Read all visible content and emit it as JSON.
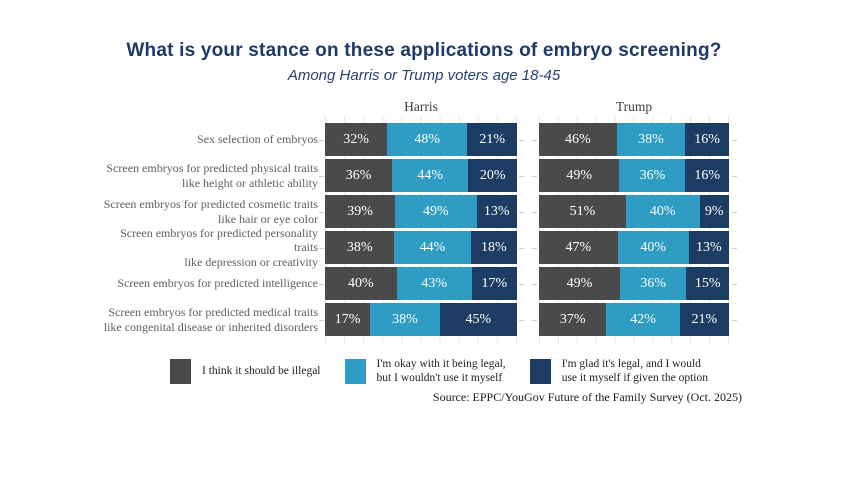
{
  "title": "What is your stance on these applications of embryo screening?",
  "subtitle": "Among Harris or Trump voters age 18-45",
  "source": "Source: EPPC/YouGov Future of the Family Survey (Oct. 2025)",
  "colors": {
    "illegal": "#4a4a4a",
    "legal_not_use": "#2e9cc3",
    "legal_would_use": "#1d3c63",
    "title_navy": "#1e3a6a",
    "row_label_gray": "#5f5f5f",
    "gridline": "#e5e5e5",
    "bar_value_text": "#ffffff"
  },
  "chart_data": {
    "type": "bar",
    "variant": "horizontal-stacked, two side-by-side panels",
    "unit": "%",
    "xlim": [
      0,
      100
    ],
    "gridlines": true,
    "categories": [
      "Sex selection of embryos",
      "Screen embryos for predicted physical traits\nlike height or athletic ability",
      "Screen embryos for predicted cosmetic traits\nlike hair or eye color",
      "Screen embryos for predicted personality traits\nlike depression or creativity",
      "Screen embryos for predicted intelligence",
      "Screen embryos for predicted medical traits\nlike congenital disease or inherited disorders"
    ],
    "series": [
      {
        "name": "I think it should be illegal",
        "color": "#4a4a4a"
      },
      {
        "name": "I'm okay with it being legal, but I wouldn't use it myself",
        "color": "#2e9cc3"
      },
      {
        "name": "I'm glad it's legal, and I would use it myself if given the option",
        "color": "#1d3c63"
      }
    ],
    "groups": [
      {
        "name": "Harris",
        "values": [
          [
            32,
            48,
            21
          ],
          [
            36,
            44,
            20
          ],
          [
            39,
            49,
            13
          ],
          [
            38,
            44,
            18
          ],
          [
            40,
            43,
            17
          ],
          [
            17,
            38,
            45
          ]
        ]
      },
      {
        "name": "Trump",
        "values": [
          [
            46,
            38,
            16
          ],
          [
            49,
            36,
            16
          ],
          [
            51,
            40,
            9
          ],
          [
            47,
            40,
            13
          ],
          [
            49,
            36,
            15
          ],
          [
            37,
            42,
            21
          ]
        ]
      }
    ]
  },
  "legend": {
    "items": [
      {
        "label": "I think it should be illegal",
        "color": "#4a4a4a"
      },
      {
        "label": "I'm okay with it being legal,\nbut I wouldn't use it myself",
        "color": "#2e9cc3"
      },
      {
        "label": "I'm glad it's legal, and I would\nuse it myself if given the option",
        "color": "#1d3c63"
      }
    ]
  }
}
